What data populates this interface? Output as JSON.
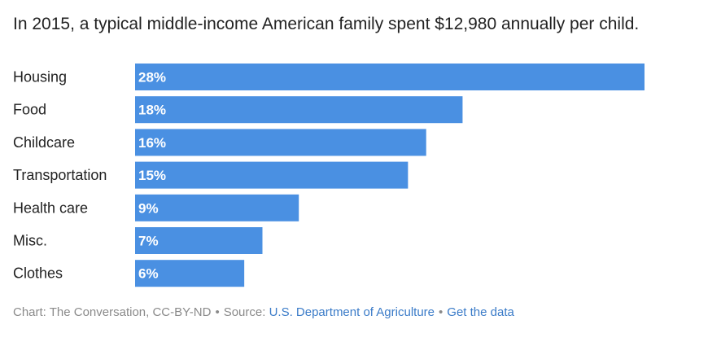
{
  "chart_data": {
    "type": "bar",
    "orientation": "horizontal",
    "title": "In 2015, a typical middle-income American family spent $12,980 annually per child.",
    "categories": [
      "Housing",
      "Food",
      "Childcare",
      "Transportation",
      "Health care",
      "Misc.",
      "Clothes"
    ],
    "values": [
      28,
      18,
      16,
      15,
      9,
      7,
      6
    ],
    "value_labels": [
      "28%",
      "18%",
      "16%",
      "15%",
      "9%",
      "7%",
      "6%"
    ],
    "unit": "%",
    "xlim": [
      0,
      28
    ],
    "grid": false,
    "bar_color": "#4a90e2",
    "label_color": "#ffffff"
  },
  "footer": {
    "credit": "Chart: The Conversation, CC-BY-ND",
    "separator": "•",
    "source_prefix": "Source:",
    "source_link": "U.S. Department of Agriculture",
    "data_link": "Get the data",
    "link_color": "#3a7bc8"
  }
}
